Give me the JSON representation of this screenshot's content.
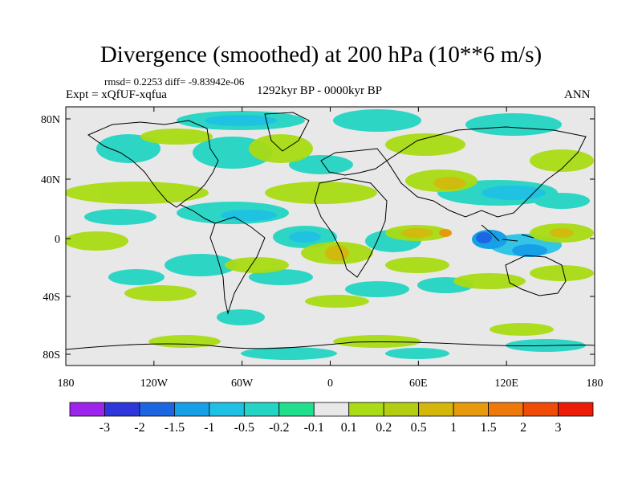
{
  "title": "Divergence (smoothed) at 200 hPa (10**6 m/s)",
  "stats": "rmsd= 0.2253 diff= -9.83942e-06",
  "experiment": "Expt = xQfUF-xqfua",
  "period": "1292kyr BP - 0000kyr BP",
  "season": "ANN",
  "map": {
    "lat_labels": [
      "80N",
      "40N",
      "0",
      "40S",
      "80S"
    ],
    "lon_labels": [
      "180",
      "120W",
      "60W",
      "0",
      "60E",
      "120E",
      "180"
    ]
  },
  "colorbar": {
    "colors": [
      "#9c24ec",
      "#2f37dc",
      "#1c66e3",
      "#16a0e8",
      "#1fc0e6",
      "#24d4c4",
      "#20e08e",
      "#e8e8e8",
      "#a9dc14",
      "#b5cd10",
      "#d5b70c",
      "#e69a0c",
      "#ef780a",
      "#f14b08",
      "#ec1c08"
    ],
    "labels": [
      "-3",
      "-2",
      "-1.5",
      "-1",
      "-0.5",
      "-0.2",
      "-0.1",
      "0.1",
      "0.2",
      "0.5",
      "1",
      "1.5",
      "2",
      "3"
    ]
  },
  "colors": {
    "ocean_background": "#e8e8e8",
    "coastline": "#000000"
  }
}
